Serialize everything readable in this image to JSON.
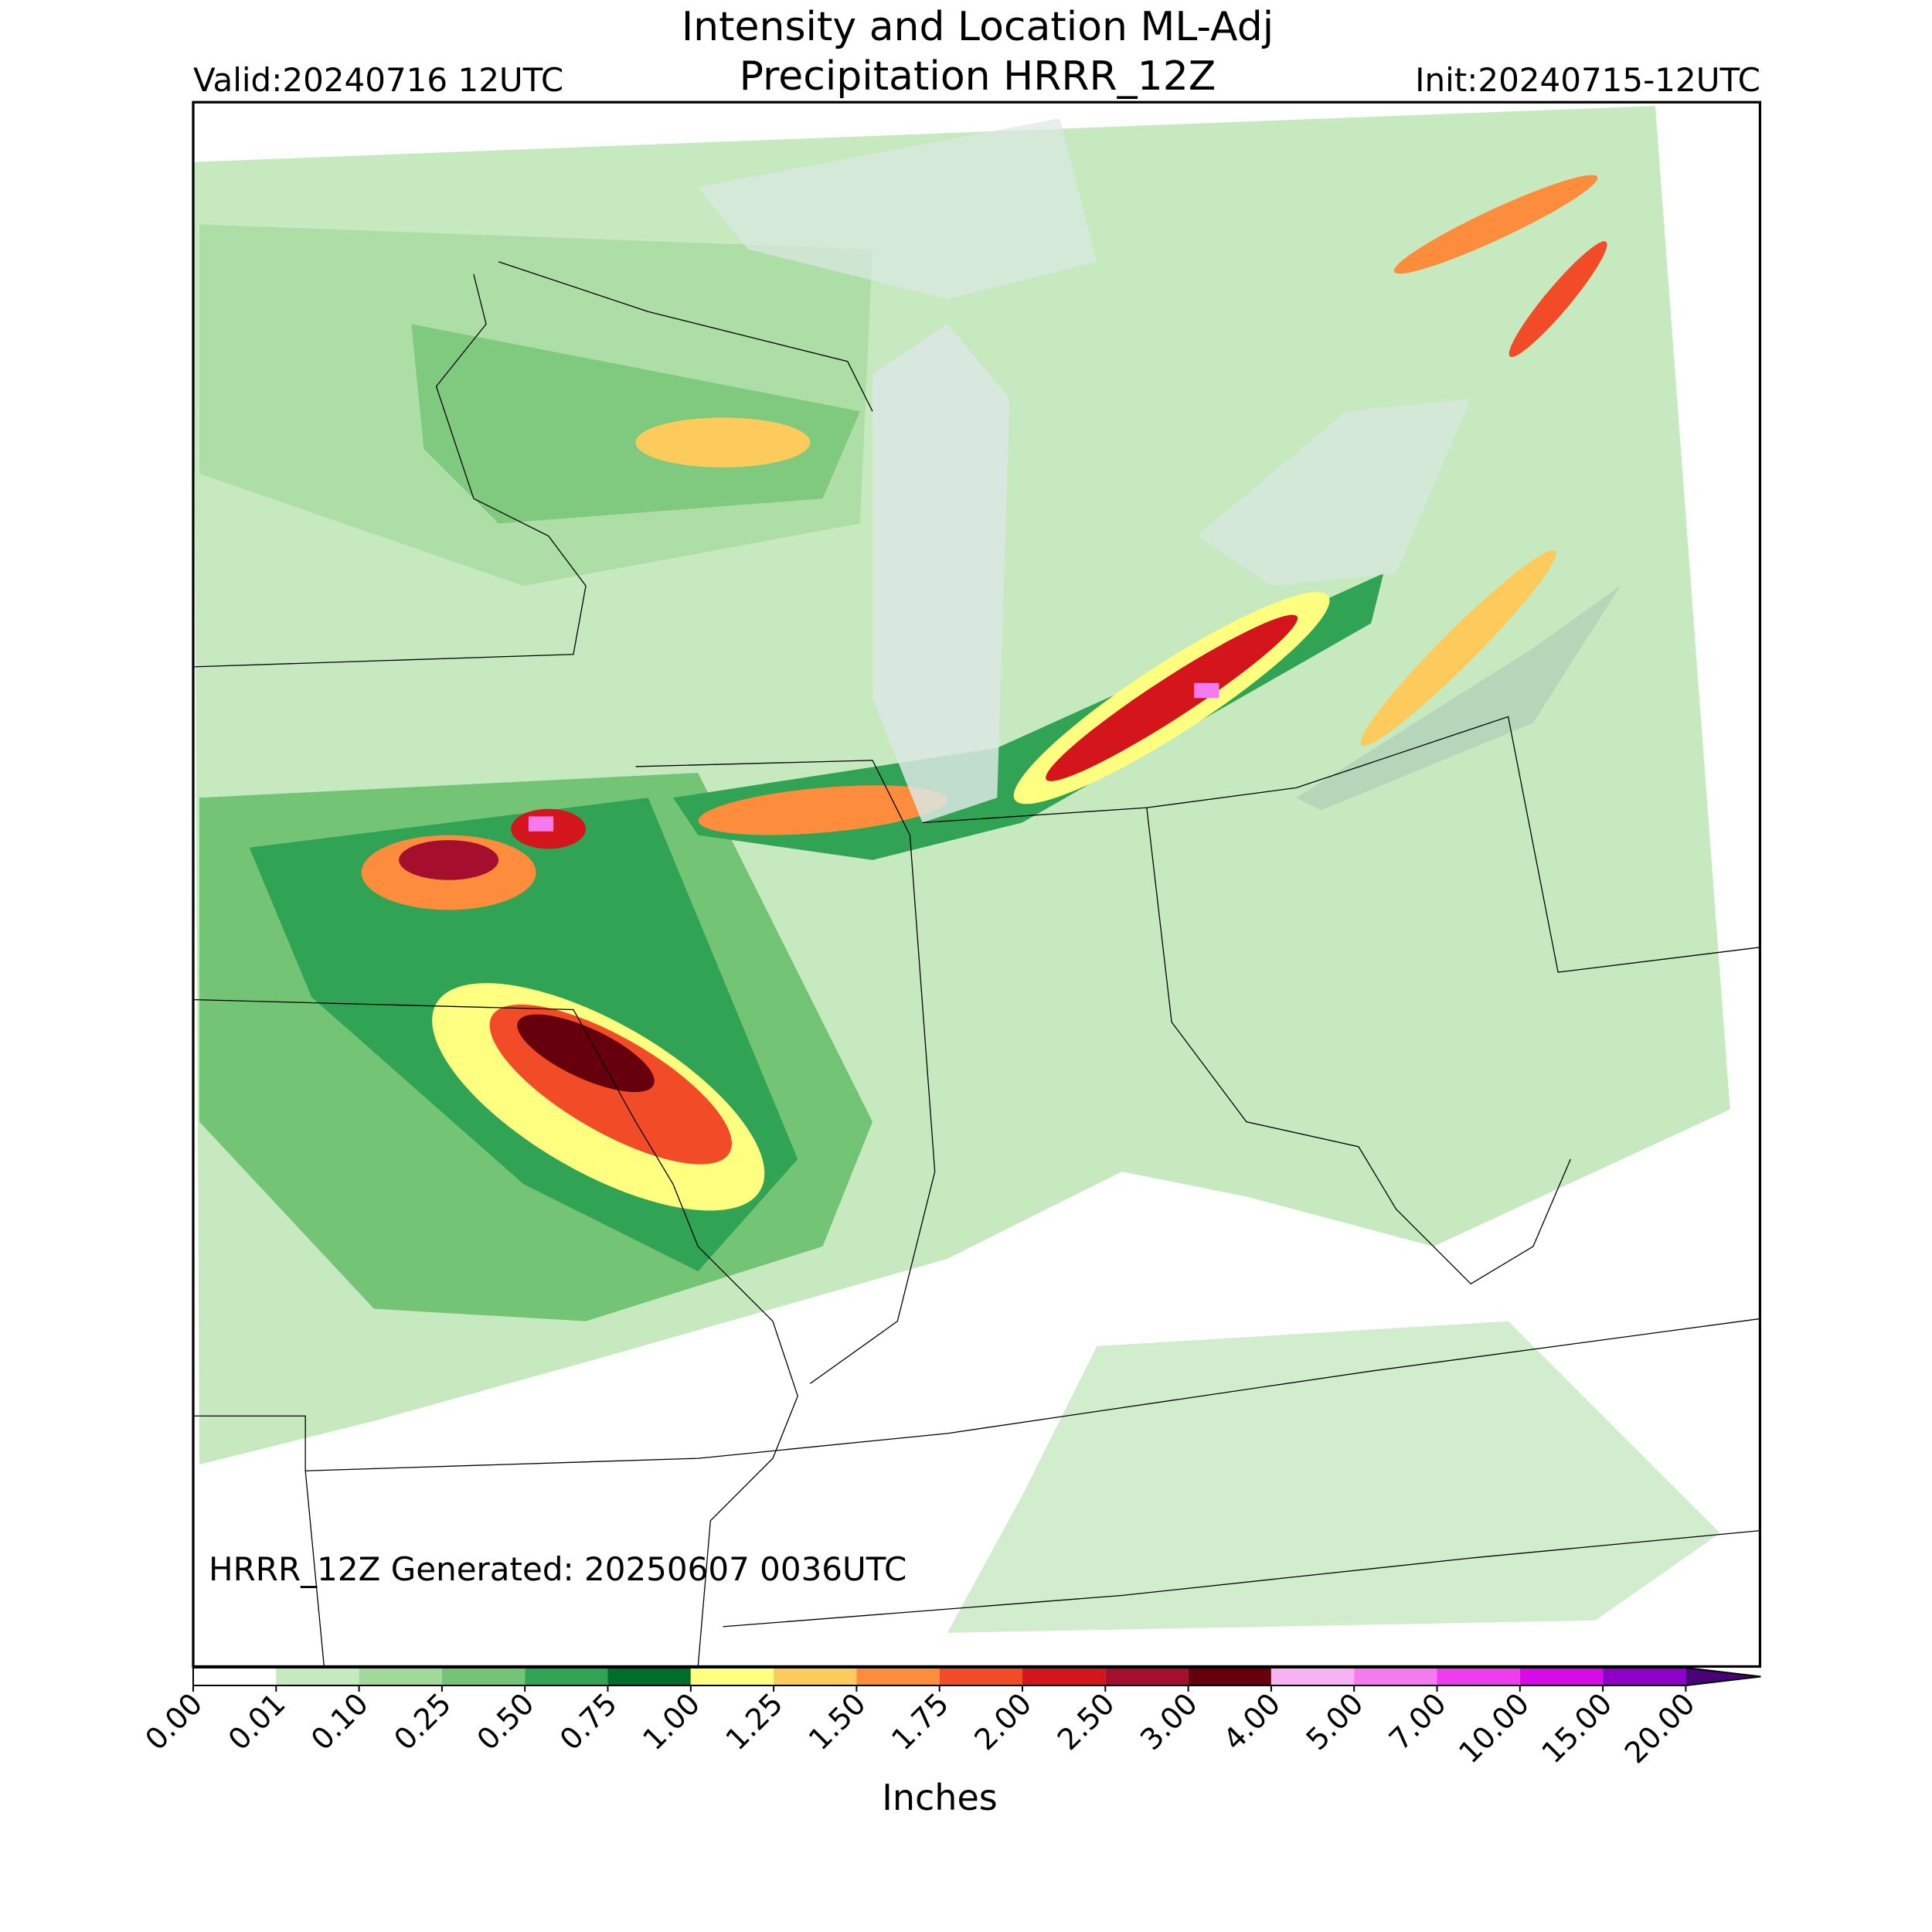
{
  "header": {
    "title_lines": [
      "Intensity and Location ML-Adj",
      "Precipitation HRRR_12Z"
    ],
    "valid": "Valid:20240716 12UTC",
    "init": "Init:20240715-12UTC"
  },
  "map": {
    "note": "HRRR_12Z Generated: 20250607 0036UTC"
  },
  "colorbar": {
    "label": "Inches",
    "ticks": [
      "0.00",
      "0.01",
      "0.10",
      "0.25",
      "0.50",
      "0.75",
      "1.00",
      "1.25",
      "1.50",
      "1.75",
      "2.00",
      "2.50",
      "3.00",
      "4.00",
      "5.00",
      "7.00",
      "10.00",
      "15.00",
      "20.00"
    ],
    "colors": [
      "#ffffff",
      "#c7e9c0",
      "#a1d99b",
      "#74c476",
      "#31a354",
      "#006d2c",
      "#ffff80",
      "#fdcb5c",
      "#fd8d3c",
      "#f24b28",
      "#d4161c",
      "#a50f2d",
      "#67000d",
      "#f7b2f3",
      "#f57af0",
      "#ee3cf0",
      "#d90ae8",
      "#8f00c8"
    ],
    "extend_color": "#4a0078"
  }
}
